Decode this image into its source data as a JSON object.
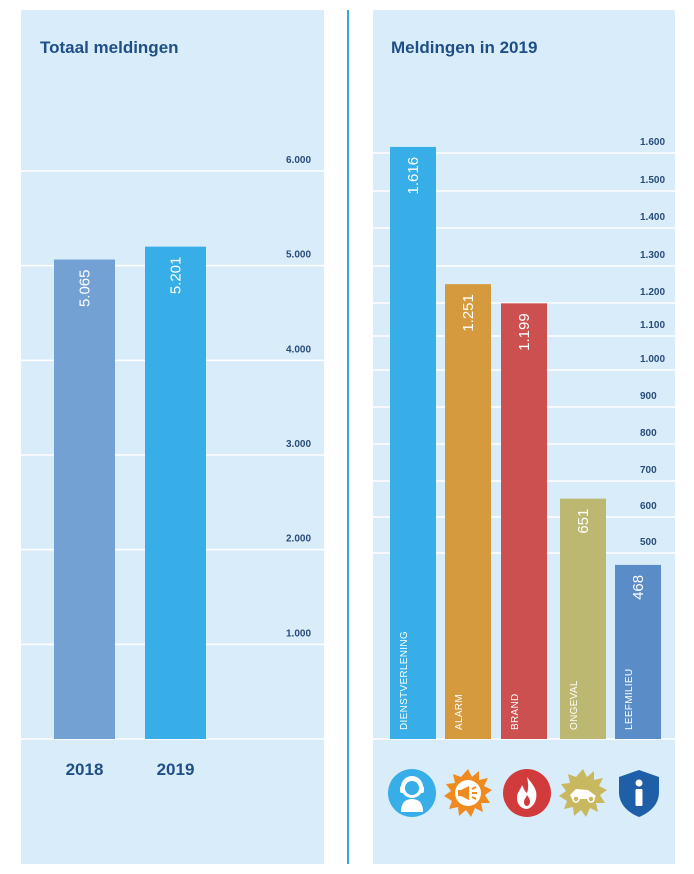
{
  "left_title": "Totaal meldingen",
  "right_title": "Meldingen in 2019",
  "icons": [
    "person-icon",
    "megaphone-icon",
    "flame-icon",
    "crash-icon",
    "shield-info-icon"
  ],
  "chart_data": [
    {
      "type": "bar",
      "title": "Totaal meldingen",
      "categories": [
        "2018",
        "2019"
      ],
      "values": [
        5065,
        5201
      ],
      "value_labels": [
        "5.065",
        "5.201"
      ],
      "colors": [
        "#73a1d4",
        "#37aee8"
      ],
      "ylim": [
        0,
        6000
      ],
      "yticks": [
        {
          "value": 1000,
          "label": "1.000"
        },
        {
          "value": 2000,
          "label": "2.000"
        },
        {
          "value": 3000,
          "label": "3.000"
        },
        {
          "value": 4000,
          "label": "4.000"
        },
        {
          "value": 5000,
          "label": "5.000"
        },
        {
          "value": 6000,
          "label": "6.000"
        }
      ],
      "grid": true,
      "axis_position": "right"
    },
    {
      "type": "bar",
      "title": "Meldingen in 2019",
      "categories": [
        "DIENSTVERLENING",
        "ALARM",
        "BRAND",
        "ONGEVAL",
        "LEEFMILIEU"
      ],
      "values": [
        1616,
        1251,
        1199,
        651,
        468
      ],
      "value_labels": [
        "1.616",
        "1.251",
        "1.199",
        "651",
        "468"
      ],
      "colors": [
        "#37aee8",
        "#d69a3e",
        "#cc5050",
        "#bcb872",
        "#5a8cc8"
      ],
      "ylim": [
        0,
        1600
      ],
      "yticks": [
        {
          "value": 500,
          "label": "500"
        },
        {
          "value": 600,
          "label": "600"
        },
        {
          "value": 700,
          "label": "700"
        },
        {
          "value": 800,
          "label": "800"
        },
        {
          "value": 900,
          "label": "900"
        },
        {
          "value": 1000,
          "label": "1.000"
        },
        {
          "value": 1100,
          "label": "1.100"
        },
        {
          "value": 1200,
          "label": "1.200"
        },
        {
          "value": 1300,
          "label": "1.300"
        },
        {
          "value": 1400,
          "label": "1.400"
        },
        {
          "value": 1500,
          "label": "1.500"
        },
        {
          "value": 1600,
          "label": "1.600"
        }
      ],
      "grid": true,
      "axis_position": "right"
    }
  ]
}
